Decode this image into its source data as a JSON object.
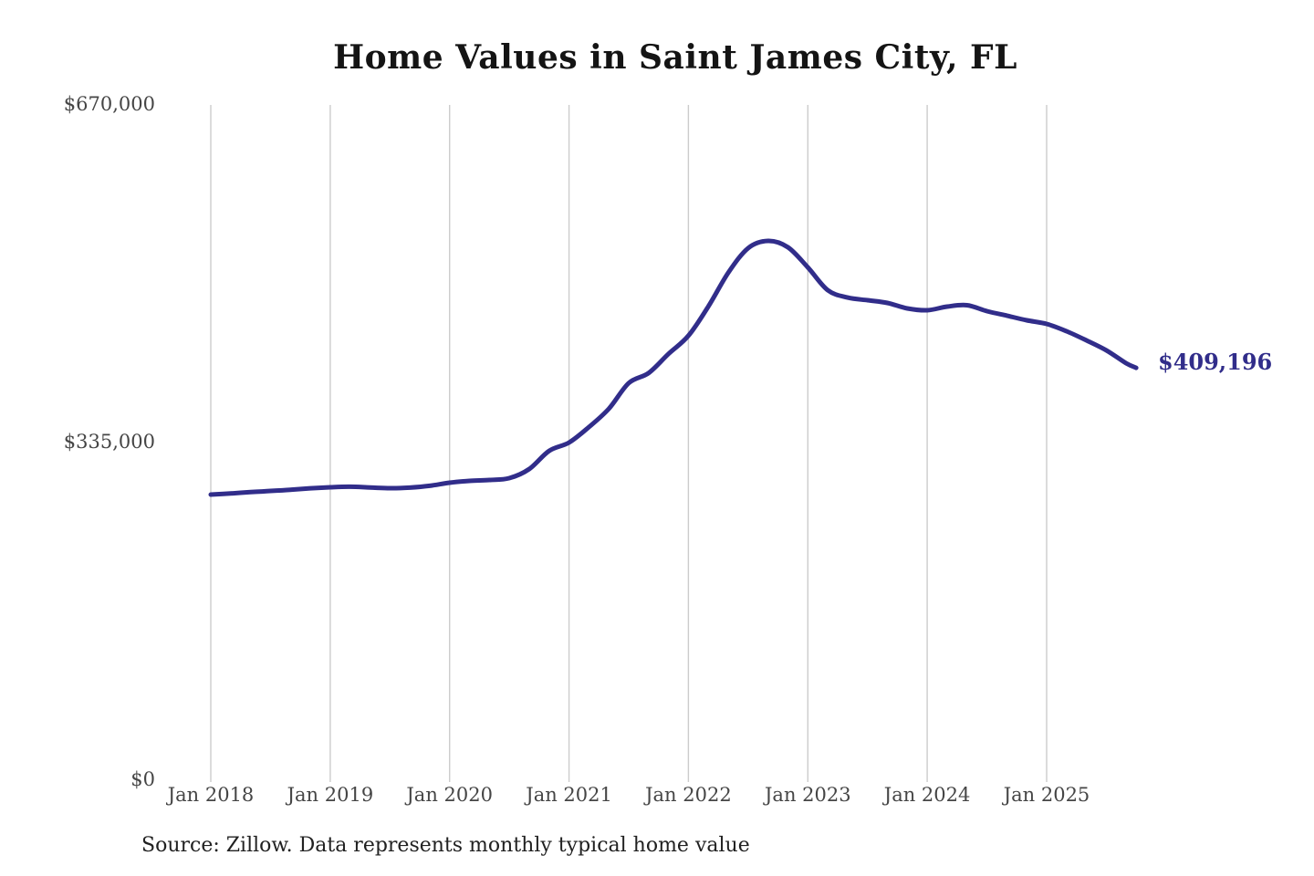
{
  "chart": {
    "title": "Home Values in Saint James City, FL",
    "source_note": "Source: Zillow. Data represents monthly typical home value",
    "end_label": "$409,196",
    "line_color": "#312d8a",
    "grid_color": "#cccccc",
    "title_color": "#141414",
    "axis_label_color": "#454545"
  },
  "chart_data": {
    "type": "line",
    "title": "Home Values in Saint James City, FL",
    "xlabel": "",
    "ylabel": "",
    "ylim": [
      0,
      670000
    ],
    "grid": "vertical-only",
    "legend": "none",
    "y_ticks": [
      {
        "value": 0,
        "label": "$0"
      },
      {
        "value": 335000,
        "label": "$335,000"
      },
      {
        "value": 670000,
        "label": "$670,000"
      }
    ],
    "x_ticks": [
      {
        "date": "2018-01",
        "label": "Jan 2018"
      },
      {
        "date": "2019-01",
        "label": "Jan 2019"
      },
      {
        "date": "2020-01",
        "label": "Jan 2020"
      },
      {
        "date": "2021-01",
        "label": "Jan 2021"
      },
      {
        "date": "2022-01",
        "label": "Jan 2022"
      },
      {
        "date": "2023-01",
        "label": "Jan 2023"
      },
      {
        "date": "2024-01",
        "label": "Jan 2024"
      },
      {
        "date": "2025-01",
        "label": "Jan 2025"
      }
    ],
    "series": [
      {
        "name": "Monthly typical home value",
        "color": "#312d8a",
        "points": [
          [
            "2018-01",
            283400
          ],
          [
            "2018-03",
            284500
          ],
          [
            "2018-05",
            285800
          ],
          [
            "2018-07",
            287000
          ],
          [
            "2018-09",
            288200
          ],
          [
            "2018-11",
            289600
          ],
          [
            "2019-01",
            290600
          ],
          [
            "2019-03",
            291200
          ],
          [
            "2019-05",
            290400
          ],
          [
            "2019-07",
            289700
          ],
          [
            "2019-09",
            290300
          ],
          [
            "2019-11",
            292100
          ],
          [
            "2020-01",
            295200
          ],
          [
            "2020-03",
            297000
          ],
          [
            "2020-05",
            297900
          ],
          [
            "2020-07",
            299700
          ],
          [
            "2020-09",
            308700
          ],
          [
            "2020-11",
            326800
          ],
          [
            "2021-01",
            335000
          ],
          [
            "2021-03",
            350400
          ],
          [
            "2021-05",
            368500
          ],
          [
            "2021-07",
            394000
          ],
          [
            "2021-09",
            404000
          ],
          [
            "2021-11",
            423000
          ],
          [
            "2022-01",
            441000
          ],
          [
            "2022-03",
            470000
          ],
          [
            "2022-05",
            503400
          ],
          [
            "2022-07",
            527900
          ],
          [
            "2022-09",
            535100
          ],
          [
            "2022-11",
            528800
          ],
          [
            "2023-01",
            508800
          ],
          [
            "2023-03",
            486200
          ],
          [
            "2023-05",
            478900
          ],
          [
            "2023-07",
            476200
          ],
          [
            "2023-09",
            473500
          ],
          [
            "2023-11",
            468100
          ],
          [
            "2024-01",
            466300
          ],
          [
            "2024-03",
            469900
          ],
          [
            "2024-05",
            471300
          ],
          [
            "2024-07",
            465400
          ],
          [
            "2024-09",
            460900
          ],
          [
            "2024-11",
            456300
          ],
          [
            "2025-01",
            452700
          ],
          [
            "2025-03",
            445500
          ],
          [
            "2025-05",
            436400
          ],
          [
            "2025-07",
            426500
          ],
          [
            "2025-09",
            413700
          ],
          [
            "2025-10",
            409196
          ]
        ]
      }
    ],
    "end_annotation": {
      "date": "2025-10",
      "value": 409196,
      "label": "$409,196"
    }
  }
}
